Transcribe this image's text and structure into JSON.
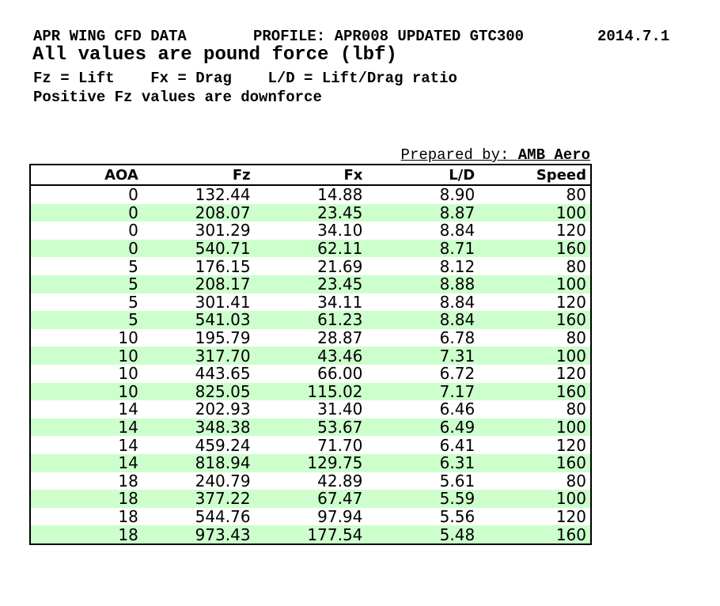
{
  "header": {
    "title": "APR WING CFD DATA",
    "profile": "PROFILE: APR008 UPDATED GTC300",
    "date": "2014.7.1",
    "units_note": "All values are pound force (lbf)",
    "legend_note": "Fz = Lift    Fx = Drag    L/D = Lift/Drag ratio",
    "downforce_note": "Positive Fz values are downforce"
  },
  "prepared_by": {
    "label": "Prepared by: ",
    "value": "AMB Aero"
  },
  "colors": {
    "row_stripe": "#ccffcc",
    "border": "#000000",
    "text": "#000000",
    "background": "#ffffff"
  },
  "chart_data": {
    "type": "table",
    "title": "APR WING CFD DATA",
    "subtitle": "PROFILE: APR008 UPDATED GTC300",
    "units": "lbf",
    "columns": [
      "AOA",
      "Fz",
      "Fx",
      "L/D",
      "Speed"
    ],
    "rows": [
      [
        "0",
        "132.44",
        "14.88",
        "8.90",
        "80"
      ],
      [
        "0",
        "208.07",
        "23.45",
        "8.87",
        "100"
      ],
      [
        "0",
        "301.29",
        "34.10",
        "8.84",
        "120"
      ],
      [
        "0",
        "540.71",
        "62.11",
        "8.71",
        "160"
      ],
      [
        "5",
        "176.15",
        "21.69",
        "8.12",
        "80"
      ],
      [
        "5",
        "208.17",
        "23.45",
        "8.88",
        "100"
      ],
      [
        "5",
        "301.41",
        "34.11",
        "8.84",
        "120"
      ],
      [
        "5",
        "541.03",
        "61.23",
        "8.84",
        "160"
      ],
      [
        "10",
        "195.79",
        "28.87",
        "6.78",
        "80"
      ],
      [
        "10",
        "317.70",
        "43.46",
        "7.31",
        "100"
      ],
      [
        "10",
        "443.65",
        "66.00",
        "6.72",
        "120"
      ],
      [
        "10",
        "825.05",
        "115.02",
        "7.17",
        "160"
      ],
      [
        "14",
        "202.93",
        "31.40",
        "6.46",
        "80"
      ],
      [
        "14",
        "348.38",
        "53.67",
        "6.49",
        "100"
      ],
      [
        "14",
        "459.24",
        "71.70",
        "6.41",
        "120"
      ],
      [
        "14",
        "818.94",
        "129.75",
        "6.31",
        "160"
      ],
      [
        "18",
        "240.79",
        "42.89",
        "5.61",
        "80"
      ],
      [
        "18",
        "377.22",
        "67.47",
        "5.59",
        "100"
      ],
      [
        "18",
        "544.76",
        "97.94",
        "5.56",
        "120"
      ],
      [
        "18",
        "973.43",
        "177.54",
        "5.48",
        "160"
      ]
    ]
  }
}
